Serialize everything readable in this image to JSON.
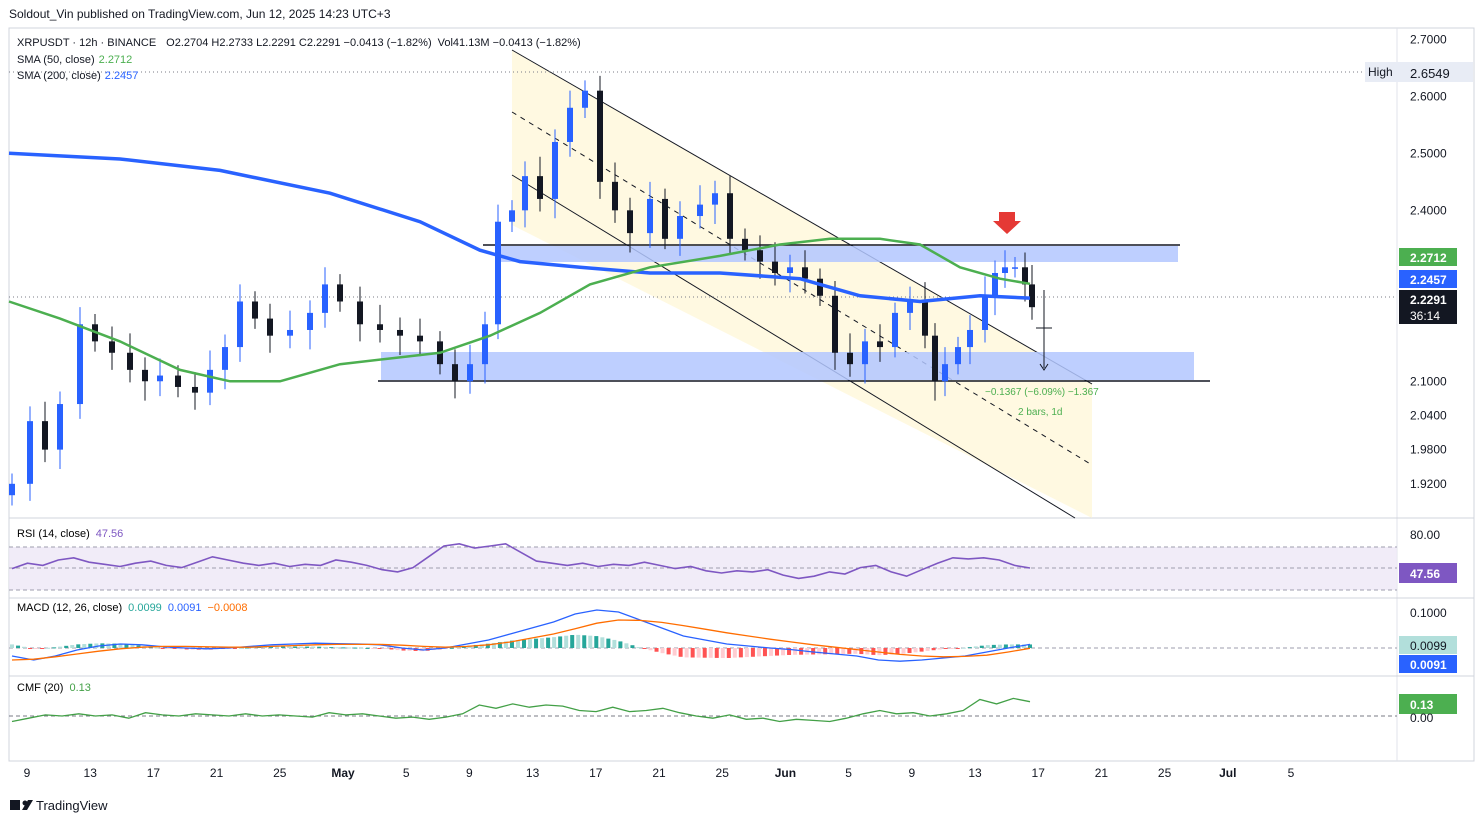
{
  "header": {
    "published": "Soldout_Vin published on TradingView.com, Jun 12, 2025 14:23 UTC+3"
  },
  "legend": {
    "symbol_line": "XRPUSDT · 12h · BINANCE",
    "ohlc": "O2.2704  H2.2733  L2.2291  C2.2291  −0.0413 (−1.82%)",
    "vol": "Vol41.13M  −0.0413 (−1.82%)",
    "sma50_label": "SMA (50, close)",
    "sma50_value": "2.2712",
    "sma200_label": "SMA (200, close)",
    "sma200_value": "2.2457"
  },
  "footer": {
    "brand": "TradingView"
  },
  "colors": {
    "up": "#2962ff",
    "down": "#131722",
    "sma50": "#4caf50",
    "sma200": "#2962ff",
    "rsi": "#7e57c2",
    "macd": "#2962ff",
    "signal": "#ff6d00",
    "cmf": "#43a047"
  },
  "chart_data": [
    {
      "type": "candlestick",
      "title": "XRPUSDT · 12h · BINANCE",
      "ylim": [
        1.86,
        2.72
      ],
      "y_ticks": [
        "2.7000",
        "2.6000",
        "2.5000",
        "2.4000",
        "2.1000",
        "2.0400",
        "1.9800",
        "1.9200"
      ],
      "x_ticks": [
        "9",
        "13",
        "17",
        "21",
        "25",
        "May",
        "5",
        "9",
        "13",
        "17",
        "21",
        "25",
        "Jun",
        "5",
        "9",
        "13",
        "17",
        "21",
        "25",
        "Jul",
        "5"
      ],
      "price_labels": {
        "high_label": "High",
        "high_value": "2.6549",
        "sma50": "2.2712",
        "sma200": "2.2457",
        "last": "2.2291",
        "countdown": "36:14"
      },
      "series": [
        {
          "name": "SMA (50, close)",
          "last": 2.2712
        },
        {
          "name": "SMA (200, close)",
          "last": 2.2457
        }
      ],
      "annotations": [
        {
          "text": "−0.1367 (−6.09%) −1.367"
        },
        {
          "text": "2 bars, 1d"
        }
      ]
    },
    {
      "type": "line",
      "title": "RSI (14, close)",
      "series": [
        {
          "name": "RSI (14, close)",
          "last": 47.56
        }
      ],
      "y_ticks": [
        "80.00"
      ],
      "last_label": "47.56"
    },
    {
      "type": "line",
      "title": "MACD (12, 26, close)",
      "values": {
        "histogram": "0.0099",
        "macd": "0.0091",
        "signal": "−0.0008"
      },
      "y_ticks": [
        "0.1000"
      ],
      "last_labels": [
        "0.0099",
        "0.0091"
      ]
    },
    {
      "type": "line",
      "title": "CMF (20)",
      "series": [
        {
          "name": "CMF (20)",
          "last": 0.13
        }
      ],
      "y_ticks": [
        "0.00"
      ],
      "last_label": "0.13"
    }
  ]
}
